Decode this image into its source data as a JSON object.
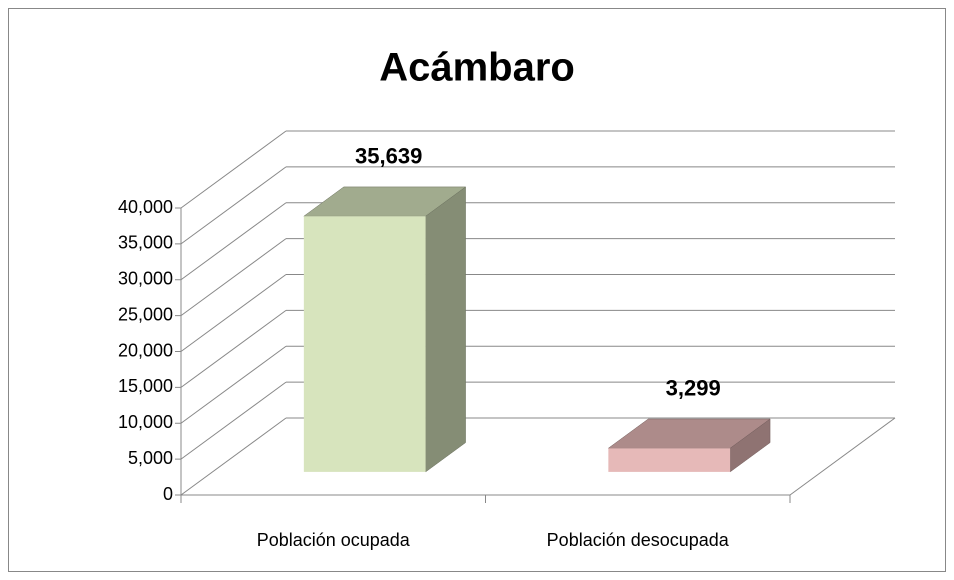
{
  "chart_data": {
    "type": "bar3d",
    "title": "Acámbaro",
    "categories": [
      "Población ocupada",
      "Población desocupada"
    ],
    "values": [
      35639,
      3299
    ],
    "value_labels": [
      "35,639",
      "3,299"
    ],
    "colors": [
      "#d7e4bd",
      "#e6b9b8"
    ],
    "ylim": [
      0,
      40000
    ],
    "yticks": [
      0,
      {
        "value": 5000,
        "label": "5,000"
      },
      {
        "value": 10000,
        "label": "10,000"
      },
      {
        "value": 15000,
        "label": "15,000"
      },
      {
        "value": 20000,
        "label": "20,000"
      },
      {
        "value": 25000,
        "label": "25,000"
      },
      {
        "value": 30000,
        "label": "30,000"
      },
      {
        "value": 35000,
        "label": "35,000"
      },
      {
        "value": 40000,
        "label": "40,000"
      }
    ],
    "grid": true
  }
}
